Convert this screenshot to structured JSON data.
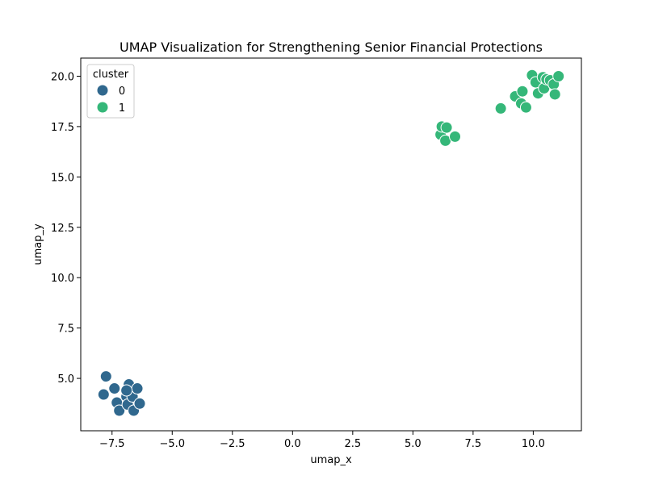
{
  "chart_data": {
    "type": "scatter",
    "title": "UMAP Visualization for Strengthening Senior Financial Protections",
    "xlabel": "umap_x",
    "ylabel": "umap_y",
    "xlim": [
      -8.8,
      12.0
    ],
    "ylim": [
      2.4,
      20.9
    ],
    "xticks": [
      -7.5,
      -5.0,
      -2.5,
      0.0,
      2.5,
      5.0,
      7.5,
      10.0
    ],
    "xtick_labels": [
      "−7.5",
      "−5.0",
      "−2.5",
      "0.0",
      "2.5",
      "5.0",
      "7.5",
      "10.0"
    ],
    "yticks": [
      5.0,
      7.5,
      10.0,
      12.5,
      15.0,
      17.5,
      20.0
    ],
    "ytick_labels": [
      "5.0",
      "7.5",
      "10.0",
      "12.5",
      "15.0",
      "17.5",
      "20.0"
    ],
    "grid": false,
    "legend": {
      "title": "cluster",
      "placement": "top-left",
      "entries": [
        {
          "label": "0",
          "color": "#30688e"
        },
        {
          "label": "1",
          "color": "#35b779"
        }
      ]
    },
    "series": [
      {
        "cluster": "0",
        "color": "#30688e",
        "points": [
          [
            -7.75,
            5.1
          ],
          [
            -7.85,
            4.2
          ],
          [
            -7.4,
            4.5
          ],
          [
            -7.3,
            3.8
          ],
          [
            -7.2,
            3.4
          ],
          [
            -6.9,
            4.1
          ],
          [
            -6.8,
            4.7
          ],
          [
            -6.85,
            3.7
          ],
          [
            -6.65,
            4.1
          ],
          [
            -6.6,
            3.4
          ],
          [
            -6.45,
            4.5
          ],
          [
            -6.35,
            3.75
          ],
          [
            -6.9,
            4.4
          ]
        ]
      },
      {
        "cluster": "1",
        "color": "#35b779",
        "points": [
          [
            6.15,
            17.1
          ],
          [
            6.2,
            17.5
          ],
          [
            6.4,
            17.45
          ],
          [
            6.35,
            16.8
          ],
          [
            6.75,
            17.0
          ],
          [
            8.65,
            18.4
          ],
          [
            9.25,
            19.0
          ],
          [
            9.5,
            18.65
          ],
          [
            9.55,
            19.25
          ],
          [
            9.7,
            18.45
          ],
          [
            9.95,
            20.05
          ],
          [
            10.1,
            19.7
          ],
          [
            10.2,
            19.15
          ],
          [
            10.4,
            19.95
          ],
          [
            10.45,
            19.4
          ],
          [
            10.55,
            19.85
          ],
          [
            10.7,
            19.8
          ],
          [
            10.85,
            19.6
          ],
          [
            10.9,
            19.1
          ],
          [
            11.05,
            20.0
          ]
        ]
      }
    ]
  }
}
